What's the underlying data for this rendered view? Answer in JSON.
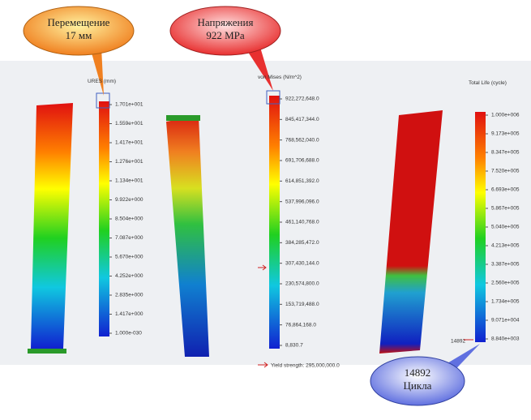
{
  "callouts": [
    {
      "lines": [
        "Перемещение",
        "17 мм"
      ]
    },
    {
      "lines": [
        "Напряжения",
        "922 MPa"
      ]
    },
    {
      "lines": [
        "14892",
        "Цикла"
      ]
    }
  ],
  "panels": [
    {
      "title": "URES (mm)",
      "labels": [
        "1.701e+001",
        "1.559e+001",
        "1.417e+001",
        "1.276e+001",
        "1.134e+001",
        "9.922e+000",
        "8.504e+000",
        "7.087e+000",
        "5.670e+000",
        "4.252e+000",
        "2.835e+000",
        "1.417e+000",
        "1.000e-030"
      ]
    },
    {
      "title": "von Mises (N/m^2)",
      "labels": [
        "922,272,648.0",
        "845,417,344.0",
        "768,562,040.0",
        "691,706,688.0",
        "614,851,392.0",
        "537,996,096.0",
        "461,140,768.0",
        "384,285,472.0",
        "307,430,144.0",
        "230,574,800.0",
        "153,719,488.0",
        "76,864,168.0",
        "8,830.7"
      ],
      "note": "Yield strength: 295,000,000.0"
    },
    {
      "title": "Total Life (cycle)",
      "labels": [
        "1.000e+006",
        "9.173e+005",
        "8.347e+005",
        "7.520e+005",
        "6.693e+005",
        "5.867e+005",
        "5.040e+005",
        "4.213e+005",
        "3.387e+005",
        "2.560e+005",
        "1.734e+005",
        "9.071e+004",
        "8.840e+003"
      ],
      "marker": "14892"
    }
  ]
}
